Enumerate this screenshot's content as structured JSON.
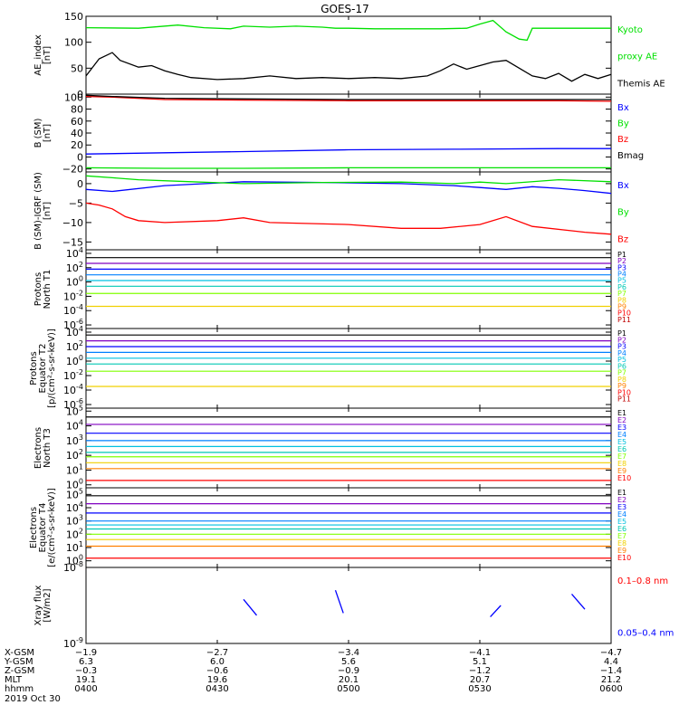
{
  "title": "GOES-17",
  "colors": {
    "black": "#000000",
    "green": "#00e000",
    "blue": "#0000ff",
    "red": "#ff0000",
    "navy": "#000080",
    "purple": "#8000c0",
    "cyan": "#00c0e0",
    "teal": "#00c8b4",
    "lime": "#80ff00",
    "yellow": "#f0d000",
    "orange": "#ff8000",
    "darkred": "#c00000",
    "grey": "#808080"
  },
  "chart_data": [
    {
      "type": "line",
      "id": "ae",
      "ylabel": [
        "AE_index",
        "[nT]"
      ],
      "ylim": [
        0,
        150
      ],
      "log": false,
      "ticks": [
        0,
        50,
        100,
        150
      ],
      "series": [
        {
          "name": "Kyoto proxy AE",
          "color": "#00e000",
          "line": "solid",
          "x": [
            0,
            0.2,
            0.35,
            0.45,
            0.55,
            0.6,
            0.7,
            0.8,
            0.9,
            0.95,
            1.0,
            1.1,
            1.2,
            1.3,
            1.35,
            1.45,
            1.5,
            1.55,
            1.6,
            1.65,
            1.68,
            1.7,
            1.72,
            1.76,
            1.8,
            1.9,
            2.0
          ],
          "y": [
            128,
            127,
            133,
            128,
            126,
            131,
            129,
            131,
            129,
            127,
            127,
            126,
            126,
            126,
            126,
            127,
            135,
            142,
            120,
            106,
            104,
            127,
            127,
            127,
            127,
            127,
            127
          ]
        },
        {
          "name": "Themis AE",
          "color": "#000000",
          "line": "solid",
          "x": [
            0,
            0.05,
            0.1,
            0.13,
            0.2,
            0.25,
            0.3,
            0.35,
            0.4,
            0.5,
            0.6,
            0.7,
            0.8,
            0.9,
            1.0,
            1.1,
            1.2,
            1.3,
            1.35,
            1.4,
            1.45,
            1.5,
            1.55,
            1.6,
            1.65,
            1.7,
            1.75,
            1.8,
            1.85,
            1.9,
            1.95,
            2.0
          ],
          "y": [
            35,
            68,
            80,
            65,
            52,
            55,
            45,
            38,
            32,
            28,
            30,
            35,
            30,
            32,
            30,
            32,
            30,
            35,
            45,
            58,
            48,
            55,
            62,
            65,
            50,
            35,
            30,
            40,
            25,
            38,
            30,
            38
          ]
        }
      ],
      "labels": [
        {
          "text": "Kyoto",
          "color": "#00e000"
        },
        {
          "text": "proxy AE",
          "color": "#00e000"
        },
        {
          "text": "Themis AE",
          "color": "#000000"
        }
      ]
    },
    {
      "type": "line",
      "id": "bsm",
      "ylabel": [
        "B (SM)",
        "[nT]"
      ],
      "ylim": [
        -25,
        105
      ],
      "log": false,
      "ticks": [
        -20,
        0,
        20,
        40,
        60,
        80,
        100
      ],
      "series": [
        {
          "name": "Bx",
          "color": "#0000ff",
          "x": [
            0,
            0.3,
            0.6,
            1.0,
            1.4,
            1.8,
            2.0
          ],
          "y": [
            5,
            7,
            9,
            12,
            13,
            14,
            14
          ]
        },
        {
          "name": "By",
          "color": "#00e000",
          "x": [
            0,
            0.3,
            0.6,
            1.0,
            1.4,
            1.8,
            2.0
          ],
          "y": [
            -18,
            -19,
            -19,
            -18,
            -18,
            -18,
            -18
          ]
        },
        {
          "name": "Bz",
          "color": "#ff0000",
          "x": [
            0,
            0.1,
            0.3,
            0.6,
            1.0,
            1.4,
            1.8,
            2.0
          ],
          "y": [
            101,
            100,
            96,
            95,
            94,
            94,
            94,
            93
          ]
        },
        {
          "name": "Bmag",
          "color": "#000000",
          "x": [
            0,
            0.1,
            0.3,
            0.6,
            1.0,
            1.4,
            1.8,
            2.0
          ],
          "y": [
            103,
            101,
            98,
            97,
            96,
            96,
            96,
            96
          ]
        }
      ],
      "labels": [
        {
          "text": "Bx",
          "color": "#0000ff"
        },
        {
          "text": "By",
          "color": "#00e000"
        },
        {
          "text": "Bz",
          "color": "#ff0000"
        },
        {
          "text": "Bmag",
          "color": "#000000"
        }
      ]
    },
    {
      "type": "line",
      "id": "bigrf",
      "ylabel": [
        "B (SM)-IGRF (SM)",
        "[nT]"
      ],
      "ylim": [
        -17,
        3
      ],
      "log": false,
      "ticks": [
        -15,
        -10,
        -5,
        0
      ],
      "series": [
        {
          "name": "Bx",
          "color": "#0000ff",
          "x": [
            0,
            0.1,
            0.3,
            0.6,
            0.9,
            1.2,
            1.4,
            1.5,
            1.6,
            1.7,
            1.8,
            1.9,
            2.0
          ],
          "y": [
            -1.5,
            -2.0,
            -0.5,
            0.5,
            0.3,
            0,
            -0.5,
            -1.0,
            -1.5,
            -0.8,
            -1.2,
            -1.8,
            -2.5
          ]
        },
        {
          "name": "By",
          "color": "#00e000",
          "x": [
            0,
            0.1,
            0.2,
            0.4,
            0.6,
            0.9,
            1.2,
            1.4,
            1.5,
            1.6,
            1.8,
            2.0
          ],
          "y": [
            2.0,
            1.5,
            1.0,
            0.5,
            0.0,
            0.3,
            0.4,
            0.0,
            0.4,
            0.0,
            1.0,
            0.5
          ]
        },
        {
          "name": "Bz",
          "color": "#ff0000",
          "x": [
            0,
            0.05,
            0.1,
            0.15,
            0.2,
            0.3,
            0.5,
            0.6,
            0.7,
            1.0,
            1.2,
            1.35,
            1.5,
            1.6,
            1.7,
            1.9,
            2.0
          ],
          "y": [
            -5.0,
            -5.5,
            -6.5,
            -8.5,
            -9.5,
            -10.0,
            -9.5,
            -8.8,
            -10.0,
            -10.5,
            -11.5,
            -11.5,
            -10.5,
            -8.5,
            -11.0,
            -12.5,
            -13.0
          ]
        }
      ],
      "labels": [
        {
          "text": "Bx",
          "color": "#0000ff"
        },
        {
          "text": "By",
          "color": "#00e000"
        },
        {
          "text": "Bz",
          "color": "#ff0000"
        }
      ]
    },
    {
      "type": "line",
      "id": "pt1",
      "ylabel": [
        "Protons",
        "North T1"
      ],
      "ylim": [
        -6.5,
        4.5
      ],
      "log": true,
      "ticks": [
        {
          "exp": 4,
          "label": "10",
          "sup": "4"
        },
        {
          "exp": 2,
          "label": "10",
          "sup": "2"
        },
        {
          "exp": 0,
          "label": "10",
          "sup": "0"
        },
        {
          "exp": -2,
          "label": "10",
          "sup": "-2"
        },
        {
          "exp": -4,
          "label": "10",
          "sup": "-4"
        },
        {
          "exp": -6,
          "label": "10",
          "sup": "-6"
        }
      ],
      "series": [
        {
          "name": "P1",
          "color": "#000000",
          "y": 3.4
        },
        {
          "name": "P2",
          "color": "#8000c0",
          "y": 2.6
        },
        {
          "name": "P3",
          "color": "#0000ff",
          "y": 1.8
        },
        {
          "name": "P4",
          "color": "#0080ff",
          "y": 1.0
        },
        {
          "name": "P5",
          "color": "#00c0e0",
          "y": 0.2
        },
        {
          "name": "P6",
          "color": "#00c8b4",
          "y": -0.6
        },
        {
          "name": "P7",
          "color": "#80ff00",
          "y": -1.6
        },
        {
          "name": "P8",
          "color": "#f0d000",
          "y": -3.4
        },
        {
          "name": "P9",
          "color": "#ff8000",
          "y": null
        },
        {
          "name": "P10",
          "color": "#ff0000",
          "y": null
        },
        {
          "name": "P11",
          "color": "#c00000",
          "y": null
        }
      ]
    },
    {
      "type": "line",
      "id": "pt2",
      "ylabel": [
        "Protons",
        "Equator T2",
        "[p/(cm²-s-sr-keV)]"
      ],
      "ylim": [
        -6.5,
        4.5
      ],
      "log": true,
      "ticks": [
        {
          "exp": 4,
          "label": "10",
          "sup": "4"
        },
        {
          "exp": 2,
          "label": "10",
          "sup": "2"
        },
        {
          "exp": 0,
          "label": "10",
          "sup": "0"
        },
        {
          "exp": -2,
          "label": "10",
          "sup": "-2"
        },
        {
          "exp": -4,
          "label": "10",
          "sup": "-4"
        },
        {
          "exp": -6,
          "label": "10",
          "sup": "-6"
        }
      ],
      "series": [
        {
          "name": "P1",
          "color": "#000000",
          "y": 3.6
        },
        {
          "name": "P2",
          "color": "#8000c0",
          "y": 2.8
        },
        {
          "name": "P3",
          "color": "#0000ff",
          "y": 2.0
        },
        {
          "name": "P4",
          "color": "#0080ff",
          "y": 1.2
        },
        {
          "name": "P5",
          "color": "#00c0e0",
          "y": 0.4
        },
        {
          "name": "P6",
          "color": "#00c8b4",
          "y": -0.4
        },
        {
          "name": "P7",
          "color": "#80ff00",
          "y": -1.4
        },
        {
          "name": "P8",
          "color": "#f0d000",
          "y": -3.5
        },
        {
          "name": "P9",
          "color": "#ff8000",
          "y": null
        },
        {
          "name": "P10",
          "color": "#ff0000",
          "y": null
        },
        {
          "name": "P11",
          "color": "#c00000",
          "y": null
        }
      ]
    },
    {
      "type": "line",
      "id": "et3",
      "ylabel": [
        "Electrons",
        "North T3"
      ],
      "ylim": [
        -0.2,
        5.2
      ],
      "log": true,
      "ticks": [
        {
          "exp": 5,
          "label": "10",
          "sup": "5"
        },
        {
          "exp": 4,
          "label": "10",
          "sup": "4"
        },
        {
          "exp": 3,
          "label": "10",
          "sup": "3"
        },
        {
          "exp": 2,
          "label": "10",
          "sup": "2"
        },
        {
          "exp": 1,
          "label": "10",
          "sup": "1"
        },
        {
          "exp": 0,
          "label": "10",
          "sup": "0"
        }
      ],
      "series": [
        {
          "name": "E1",
          "color": "#000000",
          "y": 4.6
        },
        {
          "name": "E2",
          "color": "#8000c0",
          "y": 4.1
        },
        {
          "name": "E3",
          "color": "#0000ff",
          "y": 3.5
        },
        {
          "name": "E4",
          "color": "#0080ff",
          "y": 3.0
        },
        {
          "name": "E5",
          "color": "#00c0e0",
          "y": 2.6
        },
        {
          "name": "E6",
          "color": "#00c8b4",
          "y": 2.2
        },
        {
          "name": "E7",
          "color": "#80ff00",
          "y": 1.9
        },
        {
          "name": "E8",
          "color": "#f0d000",
          "y": 1.5
        },
        {
          "name": "E9",
          "color": "#ff8000",
          "y": 1.1
        },
        {
          "name": "E10",
          "color": "#ff0000",
          "y": 0.3
        }
      ]
    },
    {
      "type": "line",
      "id": "et4",
      "ylabel": [
        "Electrons",
        "Equator T4",
        "[e/(cm²-s-sr-keV)]"
      ],
      "ylim": [
        -0.5,
        5.5
      ],
      "log": true,
      "ticks": [
        {
          "exp": 5,
          "label": "10",
          "sup": "5"
        },
        {
          "exp": 4,
          "label": "10",
          "sup": "4"
        },
        {
          "exp": 3,
          "label": "10",
          "sup": "3"
        },
        {
          "exp": 2,
          "label": "10",
          "sup": "2"
        },
        {
          "exp": 1,
          "label": "10",
          "sup": "1"
        },
        {
          "exp": 0,
          "label": "10",
          "sup": "0"
        }
      ],
      "series": [
        {
          "name": "E1",
          "color": "#000000",
          "y": 4.9
        },
        {
          "name": "E2",
          "color": "#8000c0",
          "y": 4.3
        },
        {
          "name": "E3",
          "color": "#0000ff",
          "y": 3.6
        },
        {
          "name": "E4",
          "color": "#0080ff",
          "y": 3.0
        },
        {
          "name": "E5",
          "color": "#00c0e0",
          "y": 2.7
        },
        {
          "name": "E6",
          "color": "#00c8b4",
          "y": 2.4
        },
        {
          "name": "E7",
          "color": "#80ff00",
          "y": 2.0
        },
        {
          "name": "E8",
          "color": "#f0d000",
          "y": 1.6
        },
        {
          "name": "E9",
          "color": "#ff8000",
          "y": 1.1
        },
        {
          "name": "E10",
          "color": "#ff0000",
          "y": 0.2
        }
      ]
    },
    {
      "type": "line",
      "id": "xray",
      "ylabel": [
        "Xray flux",
        "[W/m2]"
      ],
      "ylim": [
        -9,
        -8
      ],
      "log": true,
      "ticks": [
        {
          "exp": -8,
          "label": "10",
          "sup": "-8"
        },
        {
          "exp": -9,
          "label": "10",
          "sup": "-9"
        }
      ],
      "series": [
        {
          "name": "0.1-0.8 nm",
          "color": "#ff0000",
          "segments": []
        },
        {
          "name": "0.05-0.4 nm",
          "color": "#0000ff",
          "segments": [
            [
              [
                0.6,
                -8.42
              ],
              [
                0.65,
                -8.63
              ]
            ],
            [
              [
                0.95,
                -8.3
              ],
              [
                0.98,
                -8.6
              ]
            ],
            [
              [
                1.58,
                -8.5
              ],
              [
                1.54,
                -8.65
              ]
            ],
            [
              [
                1.85,
                -8.35
              ],
              [
                1.9,
                -8.55
              ]
            ]
          ]
        }
      ],
      "labels": [
        {
          "text": "0.1–0.8 nm",
          "color": "#ff0000"
        },
        {
          "text": "0.05–0.4 nm",
          "color": "#0000ff"
        }
      ]
    }
  ],
  "footer": {
    "rows": [
      {
        "label": "X-GSM",
        "values": [
          "−1.9",
          "−2.7",
          "−3.4",
          "−4.1",
          "−4.7"
        ]
      },
      {
        "label": "Y-GSM",
        "values": [
          "6.3",
          "6.0",
          "5.6",
          "5.1",
          "4.4"
        ]
      },
      {
        "label": "Z-GSM",
        "values": [
          "−0.3",
          "−0.6",
          "−0.9",
          "−1.2",
          "−1.4"
        ]
      },
      {
        "label": "MLT",
        "values": [
          "19.1",
          "19.6",
          "20.1",
          "20.7",
          "21.2"
        ]
      },
      {
        "label": "hhmm",
        "values": [
          "0400",
          "0430",
          "0500",
          "0530",
          "0600"
        ]
      }
    ],
    "date": "2019 Oct 30"
  },
  "time_range": [
    0,
    2
  ]
}
